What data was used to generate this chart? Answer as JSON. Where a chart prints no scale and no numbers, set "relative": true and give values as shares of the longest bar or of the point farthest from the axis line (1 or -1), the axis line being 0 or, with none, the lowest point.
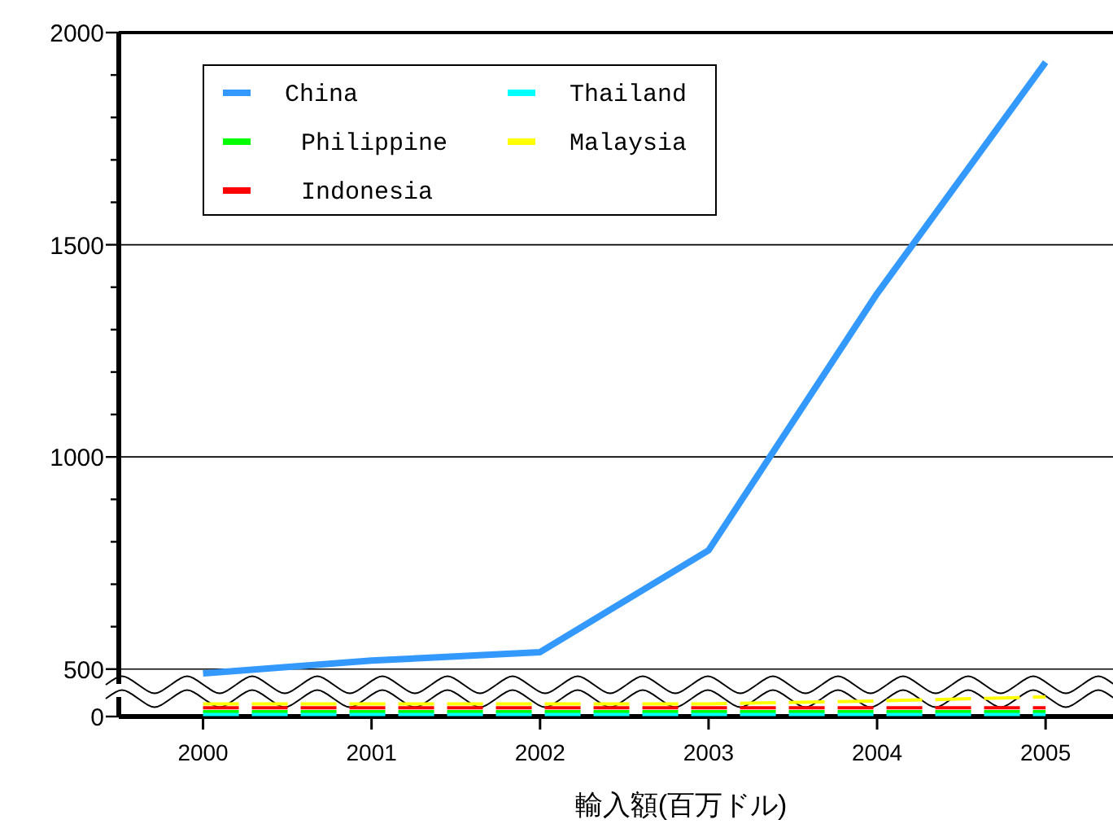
{
  "chart_data": [
    {
      "type": "line",
      "x": [
        2000,
        2001,
        2002,
        2003,
        2004,
        2005
      ],
      "xlim": [
        1999.5,
        2005.4
      ],
      "ylim": [
        465,
        2000
      ],
      "yticks": [
        500,
        {
          "value": 600,
          "label": null
        },
        {
          "value": 700,
          "label": null
        },
        {
          "value": 800,
          "label": null
        },
        {
          "value": 900,
          "label": null
        },
        1000,
        {
          "value": 1100,
          "label": null
        },
        {
          "value": 1200,
          "label": null
        },
        {
          "value": 1300,
          "label": null
        },
        {
          "value": 1400,
          "label": null
        },
        1500,
        {
          "value": 1600,
          "label": null
        },
        {
          "value": 1700,
          "label": null
        },
        {
          "value": 1800,
          "label": null
        },
        {
          "value": 1900,
          "label": null
        },
        2000
      ],
      "tick_labels": "y",
      "grid": "y",
      "legend": "top left",
      "series": [
        {
          "name": "China",
          "color": "#3399ff",
          "values": [
            490,
            520,
            540,
            780,
            1385,
            1930
          ]
        },
        {
          "name": "Philippine",
          "color": "#00ff00",
          "values": [
            null,
            null,
            null,
            null,
            null,
            null
          ]
        },
        {
          "name": "Indonesia",
          "color": "#ff0000",
          "values": [
            null,
            null,
            null,
            null,
            null,
            null
          ]
        },
        {
          "name": "Thailand",
          "color": "#00ffff",
          "values": [
            null,
            null,
            null,
            null,
            null,
            null
          ]
        },
        {
          "name": "Malaysia",
          "color": "#ffff00",
          "values": [
            null,
            null,
            null,
            null,
            null,
            null
          ]
        }
      ]
    },
    {
      "type": "line",
      "x": [
        2000,
        2001,
        2002,
        2003,
        2004,
        2005
      ],
      "xlim": [
        1999.5,
        2005.4
      ],
      "relative": true,
      "xticks": [
        2000,
        2001,
        2002,
        2003,
        2004,
        2005
      ],
      "annotations": [
        "0"
      ],
      "xlabel": "輸入額(百万ドル)",
      "line_style": "dashed",
      "series": [
        {
          "color": "#00ff00",
          "values": [
            0.25,
            0.25,
            0.25,
            0.25,
            0.25,
            0.25
          ]
        },
        {
          "color": "#00ffff",
          "values": [
            0.1,
            0.1,
            0.1,
            0.1,
            0.1,
            0.1
          ]
        },
        {
          "color": "#ff0000",
          "values": [
            0.45,
            0.45,
            0.45,
            0.45,
            0.45,
            0.45
          ]
        },
        {
          "color": "#ffff00",
          "values": [
            0.65,
            0.65,
            0.65,
            0.65,
            0.8,
            1
          ]
        }
      ]
    }
  ]
}
